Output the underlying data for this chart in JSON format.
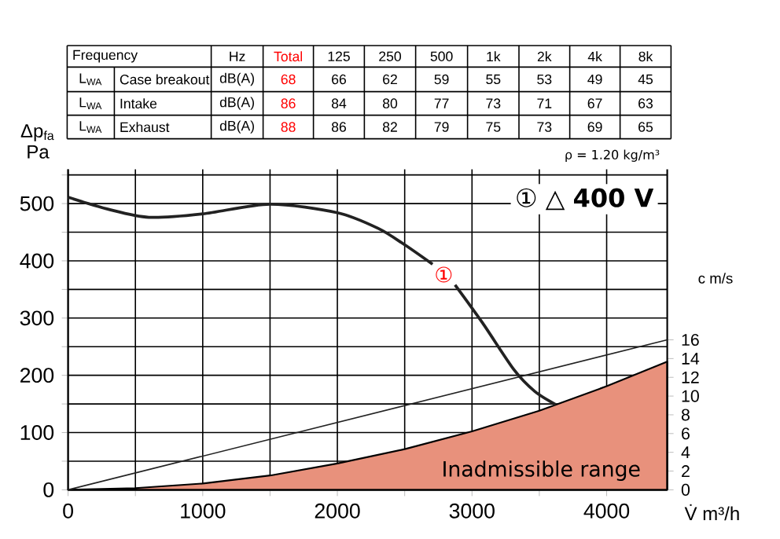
{
  "chart_data": [
    {
      "type": "other",
      "annotations": [
        "Frequency",
        "Hz",
        "Total",
        "125",
        "250",
        "500",
        "1k",
        "2k",
        "4k",
        "8k",
        "L$_{WA}$",
        "Case breakout",
        "dB(A)",
        "68",
        "66",
        "62",
        "59",
        "55",
        "53",
        "49",
        "45",
        "L$_{WA}$",
        "Intake",
        "dB(A)",
        "86",
        "84",
        "80",
        "77",
        "73",
        "71",
        "67",
        "63",
        "L$_{WA}$",
        "Exhaust",
        "dB(A)",
        "88",
        "86",
        "82",
        "79",
        "75",
        "73",
        "69",
        "65"
      ]
    },
    {
      "type": "line",
      "xlabel": "V̇ m³/h",
      "ylabel": "Δp$_{fa}$ Pa",
      "y2label": "c m/s",
      "xlim": [
        0,
        4450
      ],
      "ylim": [
        0,
        560
      ],
      "y2lim": [
        0,
        34.2
      ],
      "xticks": [
        0,
        {
          "value": 500,
          "label": null
        },
        1000,
        {
          "value": 1500,
          "label": null
        },
        2000,
        {
          "value": 2500,
          "label": null
        },
        3000,
        {
          "value": 3500,
          "label": null
        },
        4000
      ],
      "yticks": [
        0,
        {
          "value": 50,
          "label": null
        },
        100,
        {
          "value": 150,
          "label": null
        },
        200,
        {
          "value": 250,
          "label": null
        },
        300,
        {
          "value": 350,
          "label": null
        },
        400,
        {
          "value": 450,
          "label": null
        },
        500,
        {
          "value": 550,
          "label": null
        }
      ],
      "y2ticks": [
        0,
        2,
        4,
        6,
        8,
        10,
        12,
        14,
        16
      ],
      "grid": true,
      "marker": "none",
      "line_style": "solid",
      "series": [
        {
          "type": "line",
          "color": "#222222",
          "x": [
            0,
            300,
            600,
            1000,
            1500,
            2000,
            2300,
            2500,
            2707,
            2790,
            2874,
            3077,
            3311,
            3466,
            3621
          ],
          "values": [
            511,
            490,
            476,
            482,
            499,
            484,
            457,
            428,
            394,
            null,
            358,
            292,
            210,
            172,
            149
          ]
        },
        {
          "type": "line",
          "axis": "y2",
          "color": "#222222",
          "x": [
            0,
            4450
          ],
          "values": [
            0,
            16
          ]
        },
        {
          "type": "area",
          "color": "#e8917c",
          "x": [
            0,
            500,
            1000,
            1500,
            2000,
            2500,
            3000,
            3500,
            4000,
            4450
          ],
          "values": [
            0,
            3,
            11,
            25,
            46,
            71,
            102,
            138,
            181,
            224
          ]
        }
      ],
      "annotations": [
        "ρ = 1.20 kg/m³",
        "① △ **400 V**",
        {
          "text": "①",
          "x": 2790,
          "y": 376
        },
        "Inadmissible range"
      ]
    }
  ]
}
